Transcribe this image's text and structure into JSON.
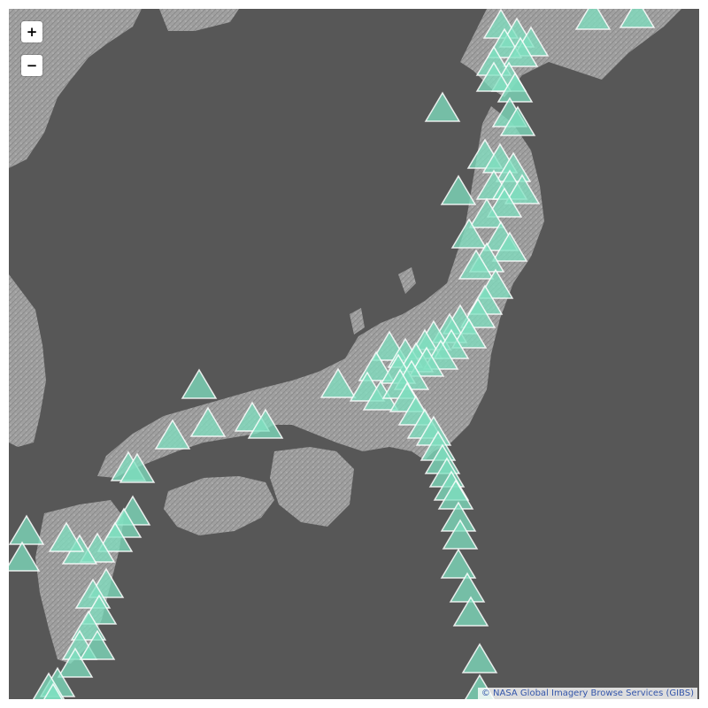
{
  "map": {
    "zoom_in_label": "+",
    "zoom_out_label": "−",
    "attribution_prefix": "© ",
    "attribution_link": "NASA Global Imagery Browse Services (GIBS)",
    "colors": {
      "ocean": "#575757",
      "land": "#9c9c9c",
      "land_shade": "#8a8a8a",
      "marker_fill": "#7fe0c0",
      "marker_stroke": "#ffffff"
    },
    "marker_icon": "volcano-triangle-icon"
  }
}
